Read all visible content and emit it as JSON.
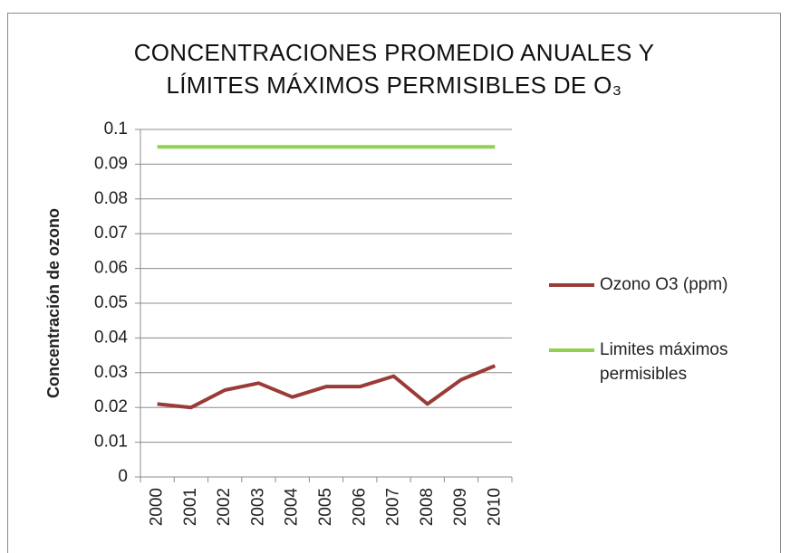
{
  "chart_data": {
    "type": "line",
    "title": "CONCENTRACIONES PROMEDIO ANUALES Y LÍMITES MÁXIMOS PERMISIBLES DE O₃",
    "ylabel": "Concentración de ozono",
    "categories": [
      "2000",
      "2001",
      "2002",
      "2003",
      "2004",
      "2005",
      "2006",
      "2007",
      "2008",
      "2009",
      "2010"
    ],
    "series": [
      {
        "name": "Ozono O3 (ppm)",
        "color": "#9b3b37",
        "values": [
          0.021,
          0.02,
          0.025,
          0.027,
          0.023,
          0.026,
          0.026,
          0.029,
          0.021,
          0.028,
          0.032
        ]
      },
      {
        "name": "Limites máximos permisibles",
        "color": "#92d050",
        "values": [
          0.095,
          0.095,
          0.095,
          0.095,
          0.095,
          0.095,
          0.095,
          0.095,
          0.095,
          0.095,
          0.095
        ]
      }
    ],
    "ylim": [
      0,
      0.1
    ],
    "yticks": [
      0,
      0.01,
      0.02,
      0.03,
      0.04,
      0.05,
      0.06,
      0.07,
      0.08,
      0.09,
      0.1
    ],
    "grid": true,
    "legend": "right"
  }
}
